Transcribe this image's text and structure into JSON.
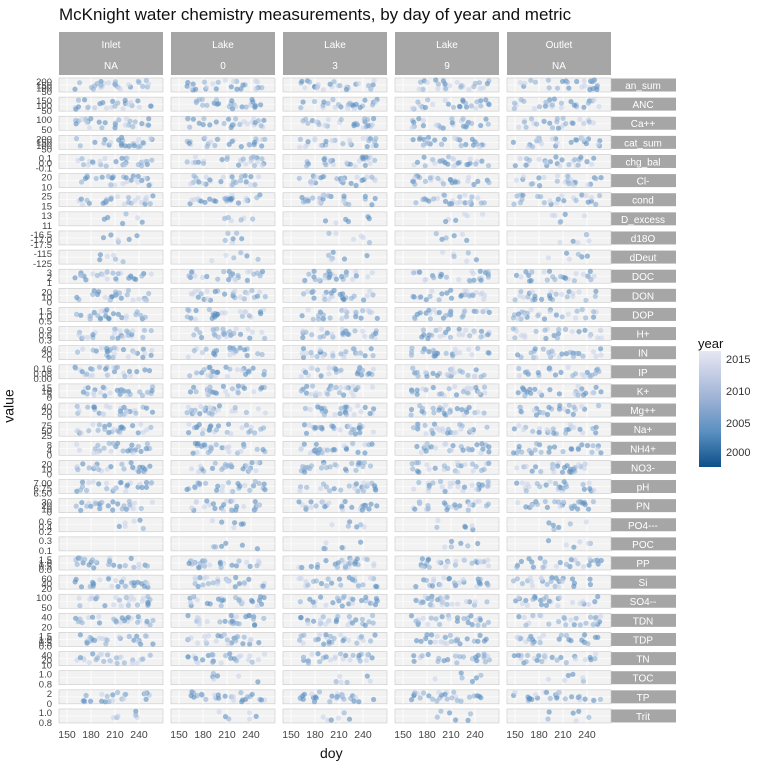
{
  "title": "McKnight water chemistry measurements, by day of year and metric",
  "chart_data": {
    "type": "scatter",
    "title": "McKnight water chemistry measurements, by day of year and metric",
    "xlabel": "doy",
    "ylabel": "value",
    "xlim": [
      140,
      270
    ],
    "x_ticks": [
      "150",
      "180",
      "210",
      "240"
    ],
    "columns": [
      {
        "site": "Inlet",
        "depth": "NA"
      },
      {
        "site": "Lake",
        "depth": "0"
      },
      {
        "site": "Lake",
        "depth": "3"
      },
      {
        "site": "Lake",
        "depth": "9"
      },
      {
        "site": "Outlet",
        "depth": "NA"
      }
    ],
    "metrics": [
      "an_sum",
      "ANC",
      "Ca++",
      "cat_sum",
      "chg_bal",
      "Cl-",
      "cond",
      "D_excess",
      "d18O",
      "dDeut",
      "DOC",
      "DON",
      "DOP",
      "H+",
      "IN",
      "IP",
      "K+",
      "Mg++",
      "Na+",
      "NH4+",
      "NO3-",
      "pH",
      "PN",
      "PO4---",
      "POC",
      "PP",
      "Si",
      "SO4--",
      "TDN",
      "TDP",
      "TN",
      "TOC",
      "TP",
      "Trit"
    ],
    "y_tick_labels": [
      [
        "200",
        "150",
        "100",
        "50"
      ],
      [
        "150",
        "100",
        "50"
      ],
      [
        "100",
        "50"
      ],
      [
        "200",
        "150",
        "100",
        "50"
      ],
      [
        "0.1",
        "0.0",
        "-0.1"
      ],
      [
        "20",
        "10"
      ],
      [
        "25",
        "15"
      ],
      [
        "13",
        "11"
      ],
      [
        "-16.5",
        "-17.0",
        "-17.5"
      ],
      [
        "-115",
        "-125"
      ],
      [
        "3",
        "2",
        "1"
      ],
      [
        "20",
        "10",
        "0"
      ],
      [
        "1.5",
        "1.0",
        "0.5"
      ],
      [
        "0.9",
        "0.6",
        "0.3"
      ],
      [
        "40",
        "20",
        "0"
      ],
      [
        "0.16",
        "0.08",
        "0.00"
      ],
      [
        "15",
        "10",
        "5",
        "0"
      ],
      [
        "40",
        "20",
        "0"
      ],
      [
        "75",
        "50",
        "25"
      ],
      [
        "8",
        "4",
        "0"
      ],
      [
        "20",
        "10",
        "0"
      ],
      [
        "7.00",
        "6.75",
        "6.50"
      ],
      [
        "30",
        "20",
        "10",
        "0"
      ],
      [
        "0.6",
        "0.4",
        "0.2"
      ],
      [
        "0.3",
        "0.1"
      ],
      [
        "1.5",
        "1.0",
        "0.5",
        "0.0"
      ],
      [
        "60",
        "40",
        "20"
      ],
      [
        "100",
        "50"
      ],
      [
        "40",
        "20"
      ],
      [
        "1.5",
        "1.0",
        "0.5",
        "0.0"
      ],
      [
        "40",
        "20",
        "10"
      ],
      [
        "1.0",
        "0.8"
      ],
      [
        "2",
        "0"
      ],
      [
        "1.0",
        "0.8"
      ]
    ],
    "color_scale": {
      "variable": "year",
      "ticks": [
        "2015",
        "2010",
        "2005",
        "2000"
      ],
      "low_color": "#0d4f8a",
      "high_color": "#e8e7f3"
    },
    "point_color": "#6f9dc9",
    "point_alpha": 0.45,
    "grid": true,
    "legend_position": "right"
  }
}
